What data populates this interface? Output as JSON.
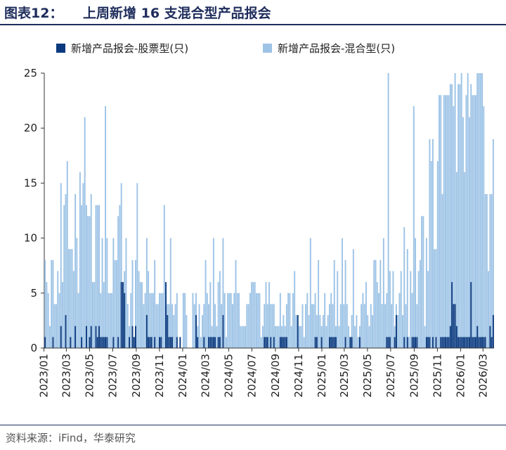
{
  "header": {
    "figure_label": "图表12：",
    "title": "上周新增 16 支混合型产品报会"
  },
  "source": "资料来源：iFind，华泰研究",
  "colors": {
    "stock": "#0b3a7e",
    "mixed": "#9dc3e6",
    "header_line": "#1f2d5c"
  },
  "chart_data": {
    "type": "bar",
    "stacked": false,
    "overlapping": true,
    "ylim": [
      0,
      25
    ],
    "yticks": [
      0,
      5,
      10,
      15,
      20,
      25
    ],
    "xtick_labels": [
      "2023/01",
      "2023/03",
      "2023/05",
      "2023/07",
      "2023/09",
      "2023/11",
      "2024/01",
      "2024/03",
      "2024/05",
      "2024/07",
      "2024/09",
      "2024/11",
      "2025/01",
      "2025/03",
      "2025/05",
      "2025/07",
      "2025/09",
      "2025/11",
      "2026/01",
      "2026/03"
    ],
    "x_start": "2023-01-02",
    "x_end": "2026-03-30",
    "legend_position": "top",
    "series": [
      {
        "name": "新增产品报会-股票型(只)",
        "values": [
          1,
          0,
          0,
          0,
          0,
          1,
          0,
          0,
          0,
          0,
          2,
          0,
          0,
          3,
          0,
          0,
          1,
          0,
          0,
          2,
          0,
          0,
          0,
          1,
          0,
          0,
          2,
          0,
          1,
          2,
          0,
          0,
          2,
          1,
          2,
          1,
          1,
          1,
          1,
          1,
          0,
          0,
          0,
          1,
          0,
          0,
          1,
          0,
          6,
          6,
          5,
          0,
          0,
          1,
          0,
          2,
          1,
          2,
          0,
          0,
          0,
          0,
          0,
          0,
          3,
          1,
          1,
          1,
          0,
          1,
          0,
          0,
          1,
          1,
          0,
          0,
          6,
          3,
          1,
          1,
          1,
          0,
          0,
          1,
          0,
          1,
          0,
          0,
          0,
          0,
          0,
          0,
          0,
          0,
          0,
          3,
          1,
          0,
          0,
          0,
          1,
          0,
          0,
          1,
          1,
          1,
          1,
          1,
          0,
          1,
          1,
          0,
          3,
          0,
          0,
          0,
          0,
          0,
          0,
          0,
          0,
          0,
          0,
          0,
          0,
          0,
          0,
          0,
          0,
          0,
          0,
          0,
          0,
          0,
          0,
          0,
          0,
          0,
          1,
          1,
          1,
          0,
          1,
          0,
          1,
          0,
          0,
          0,
          1,
          1,
          1,
          1,
          1,
          0,
          0,
          0,
          0,
          0,
          0,
          3,
          0,
          0,
          0,
          0,
          0,
          0,
          0,
          0,
          0,
          0,
          1,
          1,
          0,
          0,
          1,
          0,
          0,
          0,
          0,
          1,
          1,
          1,
          1,
          1,
          0,
          0,
          0,
          0,
          0,
          1,
          0,
          0,
          1,
          1,
          0,
          0,
          0,
          0,
          1,
          0,
          0,
          0,
          0,
          0,
          0,
          0,
          0,
          0,
          0,
          0,
          0,
          0,
          0,
          0,
          0,
          1,
          1,
          1,
          0,
          0,
          1,
          3,
          0,
          0,
          0,
          0,
          1,
          0,
          1,
          0,
          0,
          1,
          1,
          1,
          1,
          0,
          0,
          0,
          0,
          0,
          1,
          1,
          1,
          0,
          1,
          0,
          1,
          0,
          0,
          1,
          1,
          1,
          1,
          1,
          1,
          2,
          6,
          4,
          4,
          2,
          1,
          1,
          1,
          1,
          1,
          1,
          1,
          1,
          6,
          1,
          1,
          1,
          2,
          1,
          1,
          1,
          1,
          1,
          0,
          0,
          2,
          1,
          3
        ]
      },
      {
        "name": "新增产品报会-混合型(只)",
        "values": [
          8,
          6,
          5,
          2,
          8,
          8,
          4,
          4,
          7,
          5,
          15,
          6,
          13,
          14,
          17,
          9,
          9,
          9,
          7,
          14,
          10,
          5,
          16,
          13,
          15,
          21,
          13,
          12,
          12,
          14,
          6,
          6,
          13,
          13,
          13,
          5,
          10,
          6,
          22,
          10,
          5,
          5,
          5,
          10,
          8,
          8,
          12,
          13,
          15,
          3,
          7,
          10,
          4,
          2,
          5,
          8,
          1,
          8,
          15,
          7,
          6,
          6,
          4,
          5,
          10,
          7,
          5,
          5,
          5,
          8,
          4,
          4,
          5,
          5,
          5,
          13,
          3,
          4,
          4,
          10,
          4,
          3,
          4,
          5,
          0,
          0,
          0,
          5,
          5,
          3,
          0,
          0,
          0,
          5,
          4,
          5,
          2,
          4,
          1,
          3,
          4,
          8,
          5,
          4,
          6,
          2,
          10,
          4,
          2,
          6,
          7,
          4,
          10,
          5,
          1,
          5,
          5,
          5,
          4,
          5,
          8,
          5,
          5,
          2,
          2,
          2,
          2,
          4,
          4,
          5,
          6,
          6,
          6,
          5,
          5,
          5,
          1,
          2,
          4,
          6,
          4,
          6,
          4,
          4,
          4,
          2,
          2,
          2,
          5,
          2,
          3,
          2,
          4,
          5,
          5,
          2,
          5,
          7,
          3,
          3,
          2,
          2,
          4,
          1,
          4,
          5,
          3,
          10,
          4,
          4,
          5,
          3,
          8,
          3,
          2,
          3,
          5,
          2,
          3,
          4,
          5,
          4,
          8,
          2,
          7,
          2,
          4,
          10,
          4,
          8,
          4,
          2,
          1,
          3,
          9,
          2,
          3,
          1,
          2,
          4,
          5,
          4,
          6,
          3,
          2,
          4,
          3,
          8,
          8,
          6,
          5,
          8,
          4,
          10,
          4,
          5,
          25,
          7,
          4,
          7,
          2,
          4,
          3,
          5,
          7,
          3,
          11,
          4,
          9,
          1,
          7,
          5,
          22,
          10,
          4,
          7,
          8,
          12,
          12,
          2,
          10,
          7,
          19,
          17,
          19,
          9,
          9,
          17,
          23,
          23,
          14,
          23,
          23,
          23,
          23,
          24,
          24,
          22,
          25,
          16,
          24,
          24,
          25,
          21,
          16,
          23,
          25,
          21,
          24,
          23,
          23,
          23,
          25,
          25,
          25,
          25,
          22,
          14,
          14,
          7,
          14,
          14,
          19
        ]
      }
    ]
  }
}
